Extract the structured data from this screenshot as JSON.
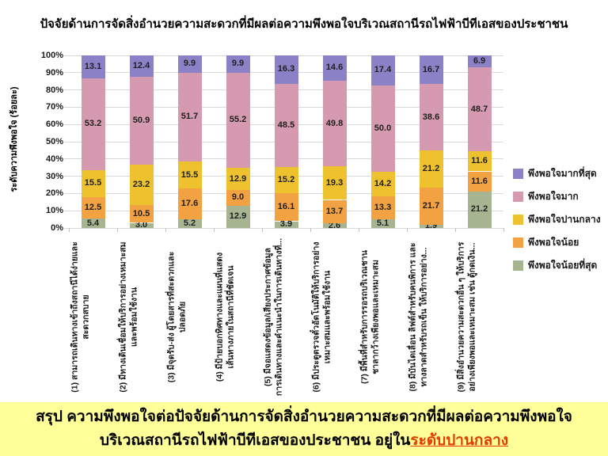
{
  "title": "ปัจจัยด้านการจัดสิ่งอำนวยความสะดวกที่มีผลต่อความพึงพอใจบริเวณสถานีรถไฟฟ้าบีทีเอสของประชาชน",
  "y_axis": {
    "label": "ระดับความพึงพอใจ (ร้อยละ)",
    "ticks": [
      "0%",
      "10%",
      "20%",
      "30%",
      "40%",
      "50%",
      "60%",
      "70%",
      "80%",
      "90%",
      "100%"
    ]
  },
  "chart_data": {
    "type": "bar",
    "stacked": true,
    "title": "ปัจจัยด้านการจัดสิ่งอำนวยความสะดวกที่มีผลต่อความพึงพอใจบริเวณสถานีรถไฟฟ้าบีทีเอสของประชาชน",
    "ylabel": "ระดับความพึงพอใจ (ร้อยละ)",
    "ylim": [
      0,
      100
    ],
    "grid": true,
    "legend_position": "right",
    "categories": [
      [
        "(1) สามารถเดินทางเข้าถึงสถานีได้ง่ายและ",
        "สะดวกสบาย"
      ],
      [
        "(2) มีทางเดินเชื่อมให้บริการอย่างเหมาะสม",
        "และพร้อมใช้งาน"
      ],
      [
        "(3) มีจุดรับ-ส่ง ผู้โดยสารที่สะดวกและ",
        "ปลอดภัย"
      ],
      [
        "(4) มีป้ายบอกทิศทางและแผนที่แสดง",
        "เส้นทางภายในสถานีที่ชัดเจน"
      ],
      [
        "(5) มีจอแสดงข้อมูล/เสียงประกาศข้อมูล",
        "การเดินทางและคำแนะนำในการเดินทางที่..."
      ],
      [
        "(6) มีประตูตรวจตั๋วอัตโนมัติให้บริการอย่าง",
        "เหมาะสมและพร้อมใช้งาน"
      ],
      [
        "(7) มีพื้นที่สำหรับการรอรถบริเวณชาน",
        "ชาลากว้างเพียงพอและเหมาะสม"
      ],
      [
        "(8) มีบันไดเลื่อน ลิฟต์สำหรับคนพิการ และ",
        "ทางลาดสำหรับรถเข็น ให้บริการอย่าง..."
      ],
      [
        "(9) มีสิ่งอำนวยความสะดวกอื่น ๆ ให้บริการ",
        "อย่างเพียงพอและเหมาะสม เช่น ตู้กดเงิน..."
      ]
    ],
    "series": [
      {
        "name": "พึงพอใจน้อยที่สุด",
        "color": "#a6b492",
        "values": [
          5.4,
          3.0,
          5.2,
          12.9,
          3.9,
          2.6,
          5.1,
          1.9,
          21.2
        ]
      },
      {
        "name": "พึงพอใจน้อย",
        "color": "#f2a143",
        "values": [
          12.5,
          10.5,
          17.6,
          9.0,
          16.1,
          13.7,
          13.3,
          21.7,
          11.6
        ]
      },
      {
        "name": "พึงพอใจปานกลาง",
        "color": "#eec22e",
        "values": [
          15.5,
          23.2,
          15.5,
          12.9,
          15.2,
          19.3,
          14.2,
          21.2,
          11.6
        ]
      },
      {
        "name": "พึงพอใจมาก",
        "color": "#d59aaf",
        "values": [
          53.2,
          50.9,
          51.7,
          55.2,
          48.5,
          49.8,
          50.0,
          38.6,
          48.7
        ]
      },
      {
        "name": "พึงพอใจมากที่สุด",
        "color": "#8b81c6",
        "values": [
          13.1,
          12.4,
          9.9,
          9.9,
          16.3,
          14.6,
          17.4,
          16.7,
          6.9
        ]
      }
    ]
  },
  "legend": {
    "items": [
      {
        "label": "พึงพอใจมากที่สุด",
        "color": "#8b81c6"
      },
      {
        "label": "พึงพอใจมาก",
        "color": "#d59aaf"
      },
      {
        "label": "พึงพอใจปานกลาง",
        "color": "#eec22e"
      },
      {
        "label": "พึงพอใจน้อย",
        "color": "#f2a143"
      },
      {
        "label": "พึงพอใจน้อยที่สุด",
        "color": "#a6b492"
      }
    ]
  },
  "banner": {
    "bg_color": "#ffff99",
    "highlight_color": "#e23c00",
    "line1": "สรุป ความพึงพอใจต่อปัจจัยด้านการจัดสิ่งอำนวยความสะดวกที่มีผลต่อความพึงพอใจ",
    "line2_prefix": "บริเวณสถานีรถไฟฟ้าบีทีเอสของประชาชน อยู่ใน",
    "line2_highlight": "ระดับปานกลาง"
  }
}
